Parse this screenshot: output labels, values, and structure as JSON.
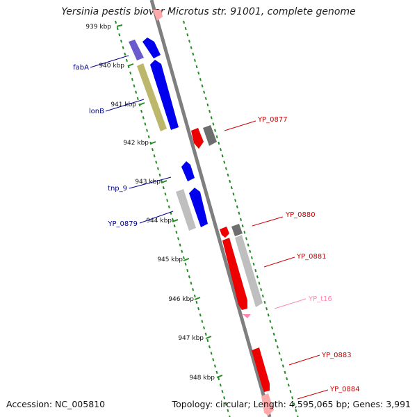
{
  "title": "Yersinia pestis biovar Microtus str. 91001, complete genome",
  "footer": {
    "accession": "Accession: NC_005810",
    "summary": "Topology: circular; Length: 4,595,065 bp; Genes: 3,991"
  },
  "colors": {
    "backbone": "#7f7f7f",
    "ruler": "#228b22",
    "forward_label": "#00008b",
    "reverse_label": "#cc0000",
    "trna_label": "#ff88b0"
  },
  "ticks": [
    {
      "label": "939 kbp"
    },
    {
      "label": "940 kbp"
    },
    {
      "label": "941 kbp"
    },
    {
      "label": "942 kbp"
    },
    {
      "label": "943 kbp"
    },
    {
      "label": "944 kbp"
    },
    {
      "label": "945 kbp"
    },
    {
      "label": "946 kbp"
    },
    {
      "label": "947 kbp"
    },
    {
      "label": "948 kbp"
    }
  ],
  "labels": {
    "forward": [
      "fabA",
      "lonB",
      "tnp_9",
      "YP_0879"
    ],
    "reverse": [
      "YP_0877",
      "YP_0880",
      "YP_0881",
      "YP_t16",
      "YP_0883",
      "YP_0884"
    ]
  }
}
